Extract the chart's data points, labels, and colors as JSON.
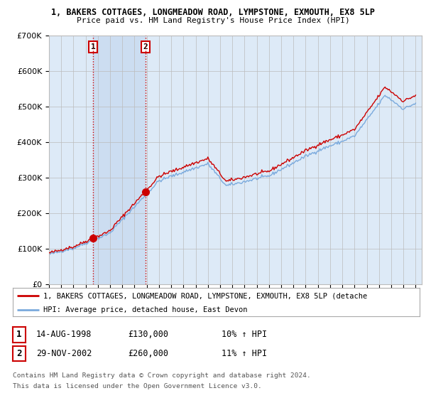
{
  "title1": "1, BAKERS COTTAGES, LONGMEADOW ROAD, LYMPSTONE, EXMOUTH, EX8 5LP",
  "title2": "Price paid vs. HM Land Registry's House Price Index (HPI)",
  "ylim": [
    0,
    700000
  ],
  "yticks": [
    0,
    100000,
    200000,
    300000,
    400000,
    500000,
    600000,
    700000
  ],
  "ytick_labels": [
    "£0",
    "£100K",
    "£200K",
    "£300K",
    "£400K",
    "£500K",
    "£600K",
    "£700K"
  ],
  "sale1_date": 1998.62,
  "sale1_price": 130000,
  "sale2_date": 2002.91,
  "sale2_price": 260000,
  "legend_line1": "1, BAKERS COTTAGES, LONGMEADOW ROAD, LYMPSTONE, EXMOUTH, EX8 5LP (detache",
  "legend_line2": "HPI: Average price, detached house, East Devon",
  "table_row1": [
    "1",
    "14-AUG-1998",
    "£130,000",
    "10% ↑ HPI"
  ],
  "table_row2": [
    "2",
    "29-NOV-2002",
    "£260,000",
    "11% ↑ HPI"
  ],
  "footnote1": "Contains HM Land Registry data © Crown copyright and database right 2024.",
  "footnote2": "This data is licensed under the Open Government Licence v3.0.",
  "hpi_color": "#7aaadd",
  "price_color": "#cc0000",
  "bg_color": "#ddeaf7",
  "shade_color": "#c5d8ef",
  "plot_bg": "#ffffff",
  "grid_color": "#bbbbbb",
  "vline_color": "#cc0000",
  "marker_color": "#cc0000",
  "xlim_start": 1995,
  "xlim_end": 2025.5
}
